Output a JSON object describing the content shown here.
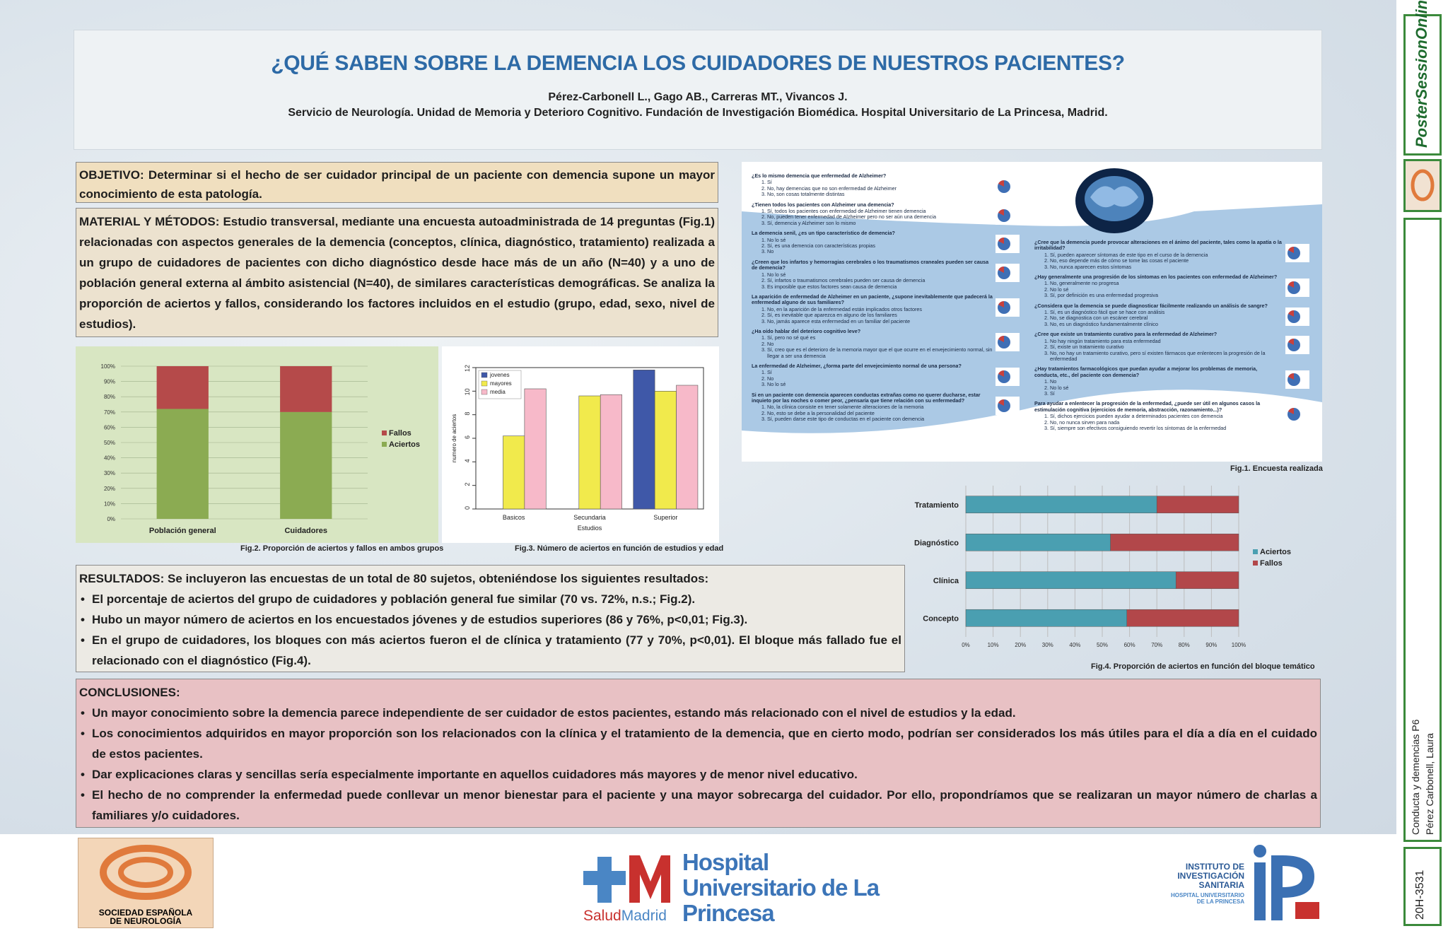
{
  "header": {
    "title": "¿QUÉ SABEN SOBRE LA DEMENCIA LOS CUIDADORES DE NUESTROS PACIENTES?",
    "authors": "Pérez-Carbonell L., Gago AB., Carreras MT., Vivancos J.",
    "affiliation": "Servicio de Neurología. Unidad de Memoria y Deterioro Cognitivo. Fundación de Investigación Biomédica. Hospital Universitario de La Princesa, Madrid."
  },
  "objetivo": {
    "label": "OBJETIVO:",
    "text": "Determinar si el hecho de ser cuidador principal de un paciente con demencia supone un mayor conocimiento de esta patología."
  },
  "metodos": {
    "label": "MATERIAL Y MÉTODOS:",
    "text": "Estudio transversal, mediante una encuesta autoadministrada de 14 preguntas (Fig.1) relacionadas con aspectos generales de la demencia (conceptos, clínica, diagnóstico, tratamiento) realizada a un grupo de cuidadores de pacientes con dicho diagnóstico desde hace más de un año (N=40) y a uno de población general externa al ámbito asistencial (N=40), de similares características demográficas. Se analiza la proporción de aciertos y fallos, considerando los factores incluidos en el estudio (grupo, edad, sexo, nivel de estudios)."
  },
  "resultados": {
    "label": "RESULTADOS:",
    "intro": "Se incluyeron las encuestas de un total de 80 sujetos, obteniéndose los siguientes resultados:",
    "items": [
      "El porcentaje de aciertos del grupo de cuidadores y población general fue similar (70 vs. 72%, n.s.; Fig.2).",
      "Hubo un mayor número de aciertos en los encuestados jóvenes y de estudios superiores (86 y 76%, p<0,01; Fig.3).",
      "En el grupo de cuidadores, los bloques con más aciertos fueron el de clínica y tratamiento (77 y 70%, p<0,01). El bloque más fallado fue el relacionado con el diagnóstico (Fig.4)."
    ]
  },
  "conclusiones": {
    "label": "CONCLUSIONES:",
    "items": [
      "Un mayor conocimiento sobre la demencia parece independiente de ser cuidador  de estos pacientes, estando más relacionado con el nivel de estudios y la edad.",
      "Los conocimientos adquiridos en mayor proporción son los relacionados con la clínica y el tratamiento de la demencia, que en cierto modo, podrían ser considerados los más útiles para el día a día en el cuidado de estos pacientes.",
      "Dar explicaciones claras y sencillas sería especialmente importante en aquellos cuidadores más mayores y de menor nivel educativo.",
      "El hecho de no comprender la enfermedad puede conllevar un menor bienestar para el paciente y una mayor sobrecarga del cuidador. Por ello,  propondríamos que se realizaran un mayor número de charlas a familiares y/o cuidadores."
    ]
  },
  "figure1": {
    "caption": "Fig.1. Encuesta realizada",
    "questions": [
      {
        "q": "¿Es lo mismo demencia que enfermedad de Alzheimer?",
        "options": [
          "Sí",
          "No, hay demencias que no son enfermedad de Alzheimer",
          "No, son cosas totalmente distintas"
        ]
      },
      {
        "q": "¿Tienen todos los pacientes con Alzheimer una demencia?",
        "options": [
          "Sí, todos los pacientes con enfermedad de Alzheimer tienen demencia",
          "No, pueden tener enfermedad de Alzheimer pero no ser aún una demencia",
          "Sí, demencia y Alzheimer son lo mismo"
        ]
      },
      {
        "q": "La demencia senil, ¿es un tipo característico de demencia?",
        "options": [
          "No lo sé",
          "Sí, es una demencia con características propias",
          "No"
        ]
      },
      {
        "q": "¿Creen que los infartos y hemorragias cerebrales o los traumatismos craneales pueden ser causa de demencia?",
        "options": [
          "No lo sé",
          "Sí, infartos o traumatismos cerebrales pueden ser causa de demencia",
          "Es imposible que estos factores sean causa de demencia"
        ]
      },
      {
        "q": "La aparición de enfermedad de Alzheimer en un paciente, ¿supone inevitablemente que padecerá la enfermedad alguno de sus familiares?",
        "options": [
          "No, en la aparición de la enfermedad están implicados otros factores",
          "Sí, es inevitable que aparezca en alguno de los familiares",
          "No, jamás aparece esta enfermedad en un familiar del paciente"
        ]
      },
      {
        "q": "¿Ha oído hablar del deterioro cognitivo leve?",
        "options": [
          "Sí, pero no sé qué es",
          "No",
          "Sí, creo que es el deterioro de la memoria mayor que el que ocurre en el envejecimiento normal, sin llegar a ser una demencia"
        ]
      },
      {
        "q": "La enfermedad de Alzheimer, ¿forma parte del envejecimiento normal de una persona?",
        "options": [
          "Sí",
          "No",
          "No lo sé"
        ]
      },
      {
        "q": "Si en un paciente con demencia aparecen conductas extrañas como no querer ducharse, estar inquieto por las noches o comer peor, ¿pensaría que tiene relación con su enfermedad?",
        "options": [
          "No, la clínica consiste en tener solamente alteraciones de la memoria",
          "No, esto se debe a la personalidad del paciente",
          "Sí, pueden darse este tipo de conductas en el paciente con demencia"
        ]
      },
      {
        "q": "¿Cree que la demencia puede provocar alteraciones en el ánimo del paciente, tales como la apatía o la irritabilidad?",
        "options": [
          "Sí, pueden aparecer síntomas de este tipo en el curso de la demencia",
          "No, eso depende más de cómo se tome las cosas el paciente",
          "No, nunca aparecen estos síntomas"
        ]
      },
      {
        "q": "¿Hay generalmente una progresión de los síntomas en los pacientes con enfermedad de Alzheimer?",
        "options": [
          "No, generalmente no progresa",
          "No lo sé",
          "Sí, por definición es una enfermedad progresiva"
        ]
      },
      {
        "q": "¿Considera que la demencia se puede diagnosticar fácilmente realizando un análisis de sangre?",
        "options": [
          "Sí, es un diagnóstico fácil que se hace con análisis",
          "No, se diagnostica con un escáner cerebral",
          "No, es un diagnóstico fundamentalmente clínico"
        ]
      },
      {
        "q": "¿Cree que existe un tratamiento curativo para la enfermedad de Alzheimer?",
        "options": [
          "No hay ningún tratamiento para esta enfermedad",
          "Sí, existe un tratamiento curativo",
          "No, no hay un tratamiento curativo, pero sí existen fármacos que enlentecen la progresión de la enfermedad"
        ]
      },
      {
        "q": "¿Hay tratamientos farmacológicos que puedan ayudar a mejorar los problemas de memoria, conducta, etc., del paciente con demencia?",
        "options": [
          "No",
          "No lo sé",
          "Sí"
        ]
      },
      {
        "q": "Para ayudar a enlentecer la progresión de la enfermedad, ¿puede ser útil en algunos casos la estimulación cognitiva (ejercicios de memoria, abstracción, razonamiento...)?",
        "options": [
          "Sí, dichos ejercicios pueden ayudar a determinados pacientes con demencia",
          "No, no nunca sirven para nada",
          "Sí, siempre son efectivos consiguiendo revertir los síntomas de la enfermedad"
        ]
      }
    ]
  },
  "chart_data": [
    {
      "type": "bar",
      "stacked": true,
      "orientation": "vertical",
      "caption": "Fig.2. Proporción de aciertos y fallos en ambos grupos",
      "categories": [
        "Población general",
        "Cuidadores"
      ],
      "series": [
        {
          "name": "Aciertos",
          "color": "#8bab52",
          "values": [
            72,
            70
          ]
        },
        {
          "name": "Fallos",
          "color": "#b54a4a",
          "values": [
            28,
            30
          ]
        }
      ],
      "ylim": [
        0,
        100
      ],
      "yticks": [
        {
          "value": 0,
          "label": "0%"
        },
        {
          "value": 10,
          "label": "10%"
        },
        {
          "value": 20,
          "label": "20%"
        },
        {
          "value": 30,
          "label": "30%"
        },
        {
          "value": 40,
          "label": "40%"
        },
        {
          "value": 50,
          "label": "50%"
        },
        {
          "value": 60,
          "label": "60%"
        },
        {
          "value": 70,
          "label": "70%"
        },
        {
          "value": 80,
          "label": "80%"
        },
        {
          "value": 90,
          "label": "90%"
        },
        {
          "value": 100,
          "label": "100%"
        }
      ],
      "grid": true,
      "legend": "right"
    },
    {
      "type": "bar",
      "stacked": false,
      "orientation": "vertical",
      "caption": "Fig.3. Número de aciertos en función de estudios y edad",
      "categories": [
        "Basicos",
        "Secundaria",
        "Superior"
      ],
      "series": [
        {
          "name": "jovenes",
          "color": "#3f58a8",
          "values": [
            null,
            null,
            11.8
          ]
        },
        {
          "name": "mayores",
          "color": "#f1ea4c",
          "values": [
            6.2,
            9.6,
            10
          ]
        },
        {
          "name": "media",
          "color": "#f7b9c9",
          "values": [
            10.2,
            9.7,
            10.5
          ]
        }
      ],
      "ylim": [
        0,
        12
      ],
      "yticks": [
        0,
        2,
        4,
        6,
        8,
        10,
        12
      ],
      "grid": false,
      "legend": "upper left",
      "xlabel": "Estudios",
      "ylabel": "numero de aciertos"
    },
    {
      "type": "bar",
      "stacked": true,
      "orientation": "horizontal",
      "caption": "Fig.4. Proporción de aciertos en función del bloque temático",
      "categories": [
        "Tratamiento",
        "Diagnóstico",
        "Clínica",
        "Concepto"
      ],
      "series": [
        {
          "name": "Aciertos",
          "color": "#4a9fb1",
          "values": [
            70,
            53,
            77,
            59
          ]
        },
        {
          "name": "Fallos",
          "color": "#b2474a",
          "values": [
            30,
            47,
            23,
            41
          ]
        }
      ],
      "xlim": [
        0,
        100
      ],
      "xticks": [
        {
          "value": 0,
          "label": "0%"
        },
        {
          "value": 10,
          "label": "10%"
        },
        {
          "value": 20,
          "label": "20%"
        },
        {
          "value": 30,
          "label": "30%"
        },
        {
          "value": 40,
          "label": "40%"
        },
        {
          "value": 50,
          "label": "50%"
        },
        {
          "value": 60,
          "label": "60%"
        },
        {
          "value": 70,
          "label": "70%"
        },
        {
          "value": 80,
          "label": "80%"
        },
        {
          "value": 90,
          "label": "90%"
        },
        {
          "value": 100,
          "label": "100%"
        }
      ],
      "grid": true,
      "legend": "right"
    }
  ],
  "logos": {
    "sen": "SOCIEDAD ESPAÑOLA DE NEUROLOGÍA",
    "hospital": "Hospital Universitario de La Princesa",
    "salud_a": "Salud",
    "salud_b": "Madrid",
    "iis": "INSTITUTO DE INVESTIGACIÓN SANITARIA",
    "iis_sub": "HOSPITAL UNIVERSITARIO DE LA PRINCESA"
  },
  "sidebar": {
    "brand": "PosterSessionOnline",
    "session": "Conducta y demencias P6",
    "author": "Pérez Carbonell, Laura",
    "code": "20H-3531"
  }
}
